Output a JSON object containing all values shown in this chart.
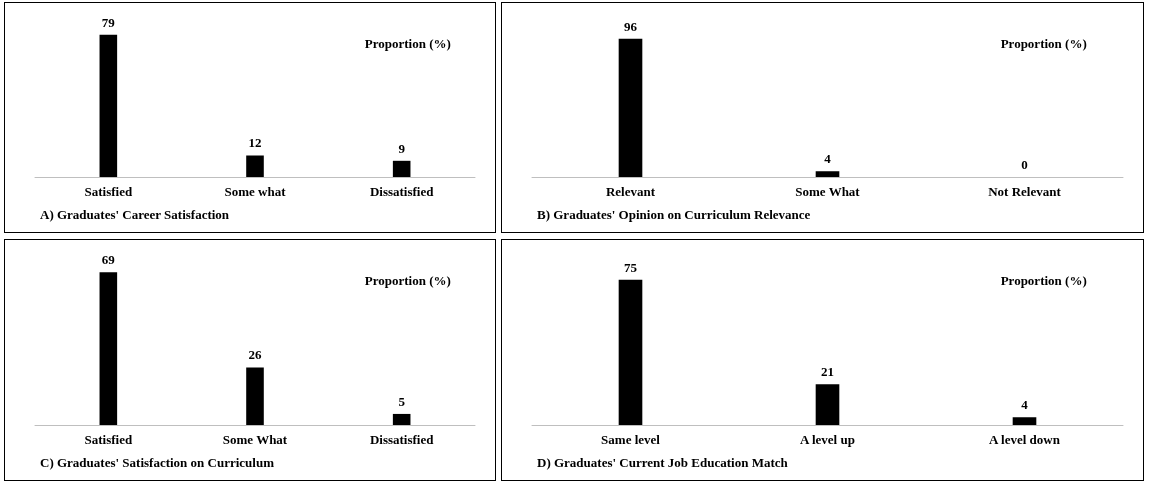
{
  "chart_data": [
    {
      "type": "bar",
      "title": "A) Graduates' Career Satisfaction",
      "categories": [
        "Satisfied",
        "Some what",
        "Dissatisfied"
      ],
      "series": [
        {
          "name": "Proportion (%)",
          "color": "#000000",
          "values": [
            79,
            12,
            9
          ]
        }
      ],
      "data_labels": true,
      "legend": "top right"
    },
    {
      "type": "bar",
      "title": "B) Graduates' Opinion on Curriculum Relevance",
      "categories": [
        "Relevant",
        "Some What",
        "Not Relevant"
      ],
      "series": [
        {
          "name": "Proportion (%)",
          "color": "#000000",
          "values": [
            96,
            4,
            0
          ]
        }
      ],
      "data_labels": true,
      "legend": "top right"
    },
    {
      "type": "bar",
      "title": "C) Graduates' Satisfaction on Curriculum",
      "categories": [
        "Satisfied",
        "Some What",
        "Dissatisfied"
      ],
      "series": [
        {
          "name": "Proportion (%)",
          "color": "#000000",
          "values": [
            69,
            26,
            5
          ]
        }
      ],
      "data_labels": true,
      "legend": "top right"
    },
    {
      "type": "bar",
      "title": "D) Graduates' Current Job Education Match",
      "categories": [
        "Same level",
        "A level up",
        "A level down"
      ],
      "series": [
        {
          "name": "Proportion (%)",
          "color": "#000000",
          "values": [
            75,
            21,
            4
          ]
        }
      ],
      "data_labels": true,
      "legend": "top right"
    }
  ]
}
